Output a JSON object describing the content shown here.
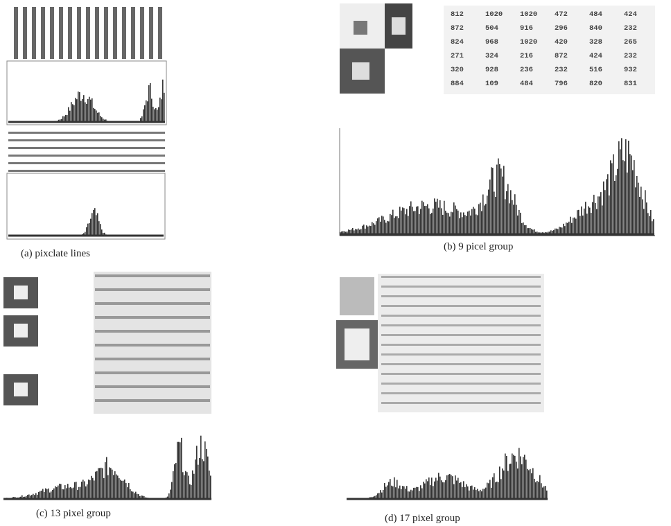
{
  "panels": [
    {
      "caption": "(a) pixclate lines"
    },
    {
      "caption": "(b) 9 picel group",
      "table": {
        "rows": [
          [
            812,
            1020,
            1020,
            472,
            484,
            424
          ],
          [
            872,
            504,
            916,
            296,
            840,
            232
          ],
          [
            824,
            968,
            1020,
            420,
            328,
            265
          ],
          [
            271,
            324,
            216,
            872,
            424,
            232
          ],
          [
            320,
            928,
            236,
            232,
            516,
            932
          ],
          [
            884,
            109,
            484,
            796,
            820,
            831
          ]
        ]
      }
    },
    {
      "caption": "(c) 13 pixel group"
    },
    {
      "caption": "(d) 17 pixel group"
    }
  ]
}
